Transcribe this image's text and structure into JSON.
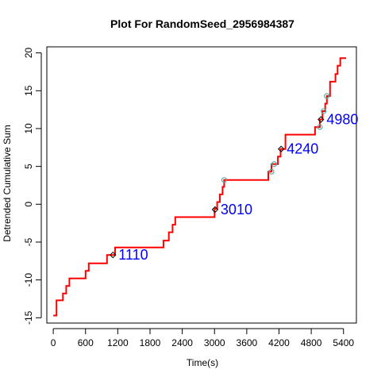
{
  "chart_data": {
    "type": "line",
    "title": "Plot For RandomSeed_2956984387",
    "xlabel": "Time(s)",
    "ylabel": "Detrended Cumulative Sum",
    "xlim": [
      -120,
      5640
    ],
    "ylim": [
      -15.7,
      20.8
    ],
    "x_ticks": [
      0,
      600,
      1200,
      1800,
      2400,
      3000,
      3600,
      4200,
      4800,
      5400
    ],
    "y_ticks": [
      -15,
      -10,
      -5,
      0,
      5,
      10,
      15,
      20
    ],
    "series": [
      {
        "color": "#ff0000",
        "step": true,
        "points": [
          [
            0,
            -14.7
          ],
          [
            60,
            -14.7
          ],
          [
            60,
            -12.7
          ],
          [
            180,
            -12.7
          ],
          [
            180,
            -11.8
          ],
          [
            240,
            -11.8
          ],
          [
            240,
            -10.8
          ],
          [
            300,
            -10.8
          ],
          [
            300,
            -9.8
          ],
          [
            600,
            -9.8
          ],
          [
            600,
            -8.8
          ],
          [
            660,
            -8.8
          ],
          [
            660,
            -7.8
          ],
          [
            1000,
            -7.8
          ],
          [
            1000,
            -6.7
          ],
          [
            1150,
            -6.7
          ],
          [
            1150,
            -5.7
          ],
          [
            2050,
            -5.7
          ],
          [
            2050,
            -4.8
          ],
          [
            2150,
            -4.8
          ],
          [
            2150,
            -3.7
          ],
          [
            2220,
            -3.7
          ],
          [
            2220,
            -2.7
          ],
          [
            2270,
            -2.7
          ],
          [
            2270,
            -1.7
          ],
          [
            3000,
            -1.7
          ],
          [
            3000,
            -0.6
          ],
          [
            3050,
            -0.6
          ],
          [
            3050,
            0.3
          ],
          [
            3100,
            0.3
          ],
          [
            3100,
            1.3
          ],
          [
            3150,
            1.3
          ],
          [
            3150,
            2.3
          ],
          [
            3180,
            2.3
          ],
          [
            3180,
            3.2
          ],
          [
            4000,
            3.2
          ],
          [
            4000,
            4.3
          ],
          [
            4060,
            4.3
          ],
          [
            4060,
            5.3
          ],
          [
            4180,
            5.3
          ],
          [
            4180,
            6.3
          ],
          [
            4230,
            6.3
          ],
          [
            4230,
            7.3
          ],
          [
            4320,
            7.3
          ],
          [
            4320,
            9.2
          ],
          [
            4870,
            9.2
          ],
          [
            4870,
            10.2
          ],
          [
            4960,
            10.2
          ],
          [
            4960,
            11.2
          ],
          [
            5010,
            11.2
          ],
          [
            5010,
            12.3
          ],
          [
            5060,
            12.3
          ],
          [
            5060,
            13.3
          ],
          [
            5090,
            13.3
          ],
          [
            5090,
            14.3
          ],
          [
            5150,
            14.3
          ],
          [
            5150,
            16.2
          ],
          [
            5250,
            16.2
          ],
          [
            5250,
            17.2
          ],
          [
            5290,
            17.2
          ],
          [
            5290,
            18.3
          ],
          [
            5340,
            18.3
          ],
          [
            5340,
            19.3
          ],
          [
            5450,
            19.3
          ]
        ]
      }
    ],
    "change_points": [
      {
        "x": 1110,
        "y": -6.7,
        "label": "1110"
      },
      {
        "x": 3010,
        "y": -0.7,
        "label": "3010"
      },
      {
        "x": 4240,
        "y": 7.3,
        "label": "4240"
      },
      {
        "x": 4980,
        "y": 11.2,
        "label": "4980"
      }
    ],
    "secondary_markers": [
      {
        "x": 3180,
        "y": 3.2
      },
      {
        "x": 4060,
        "y": 4.3
      },
      {
        "x": 4110,
        "y": 5.3
      },
      {
        "x": 4960,
        "y": 10.2
      },
      {
        "x": 5030,
        "y": 12.3
      },
      {
        "x": 5090,
        "y": 14.3
      }
    ],
    "colors": {
      "line": "#ff0000",
      "annotation": "#0000ff",
      "marker_edge": "#000000",
      "secondary_marker": "#5fa8a0"
    },
    "grid": false,
    "legend": "none"
  }
}
